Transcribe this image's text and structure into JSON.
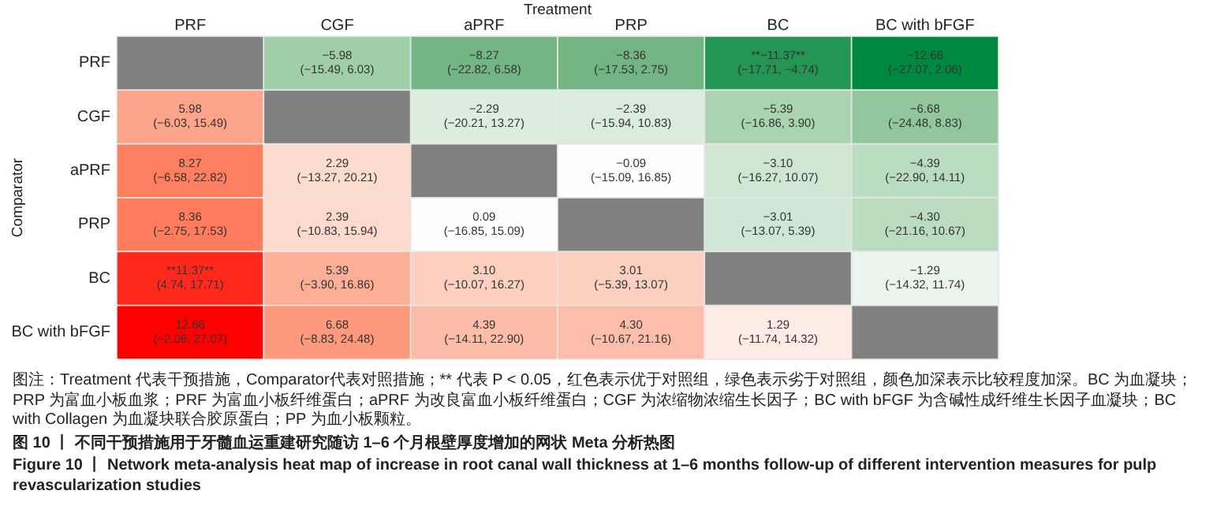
{
  "chart_data": {
    "type": "heatmap",
    "title": "图 10 丨 不同干预措施用于牙髓血运重建研究随访 1–6 个月根壁厚度增加的网状 Meta 分析热图",
    "subtitle": "Figure 10 丨 Network meta-analysis heat map of increase in root canal wall thickness at 1–6 months follow-up of different intervention measures for pulp revascularization studies",
    "xlabel": "Treatment",
    "ylabel": "Comparator",
    "categories": [
      "PRF",
      "CGF",
      "aPRF",
      "PRP",
      "BC",
      "BC with bFGF"
    ],
    "y_categories": [
      "PRF",
      "CGF",
      "aPRF",
      "PRP",
      "BC",
      "BC with bFGF"
    ],
    "cells": [
      [
        null,
        -5.98,
        -8.27,
        -8.36,
        -11.37,
        -12.66
      ],
      [
        5.98,
        null,
        -2.29,
        -2.39,
        -5.39,
        -6.68
      ],
      [
        8.27,
        2.29,
        null,
        -0.09,
        -3.1,
        -4.39
      ],
      [
        8.36,
        2.39,
        0.09,
        null,
        -3.01,
        -4.3
      ],
      [
        11.37,
        5.39,
        3.1,
        3.01,
        null,
        -1.29
      ],
      [
        12.66,
        6.68,
        4.39,
        4.3,
        1.29,
        null
      ]
    ],
    "cell_labels": [
      [
        null,
        "−5.98",
        "−8.27",
        "−8.36",
        "**−11.37**",
        "−12.66"
      ],
      [
        "5.98",
        null,
        "−2.29",
        "−2.39",
        "−5.39",
        "−6.68"
      ],
      [
        "8.27",
        "2.29",
        null,
        "−0.09",
        "−3.10",
        "−4.39"
      ],
      [
        "8.36",
        "2.39",
        "0.09",
        null,
        "−3.01",
        "−4.30"
      ],
      [
        "**11.37**",
        "5.39",
        "3.10",
        "3.01",
        null,
        "−1.29"
      ],
      [
        "12.66",
        "6.68",
        "4.39",
        "4.30",
        "1.29",
        null
      ]
    ],
    "annotations": [
      "(−15.49, 6.03)",
      "(−22.82, 6.58)",
      "(−17.53, 2.75)",
      "(−17.71, −4.74)",
      "(−27.07, 2.06)",
      "(−6.03, 15.49)",
      "(−20.21, 13.27)",
      "(−15.94, 10.83)",
      "(−16.86, 3.90)",
      "(−24.48, 8.83)",
      "(−6.58, 22.82)",
      "(−13.27, 20.21)",
      "(−15.09, 16.85)",
      "(−16.27, 10.07)",
      "(−22.90, 14.11)",
      "(−2.75, 17.53)",
      "(−10.83, 15.94)",
      "(−16.85, 15.09)",
      "(−13.07, 5.39)",
      "(−21.16, 10.67)",
      "(4.74, 17.71)",
      "(−3.90, 16.86)",
      "(−10.07, 16.27)",
      "(−5.39, 13.07)",
      "(−14.32, 11.74)",
      "(−2.06, 27.07)",
      "(−8.83, 24.48)",
      "(−14.11, 22.90)",
      "(−10.67, 21.16)",
      "(−11.74, 14.32)",
      "图注：Treatment 代表干预措施，Comparator代表对照措施；** 代表 P < 0.05，红色表示优于对照组，绿色表示劣于对照组，颜色加深表示比较程度加深。BC 为血凝块；PRP 为富血小板血浆；PRF 为富血小板纤维蛋白；aPRF 为改良富血小板纤维蛋白；CGF 为浓缩物浓缩生长因子；BC with bFGF 为含碱性成纤维生长因子血凝块；BC with Collagen 为血凝块联合胶原蛋白；PP 为血小板颗粒。"
    ]
  }
}
